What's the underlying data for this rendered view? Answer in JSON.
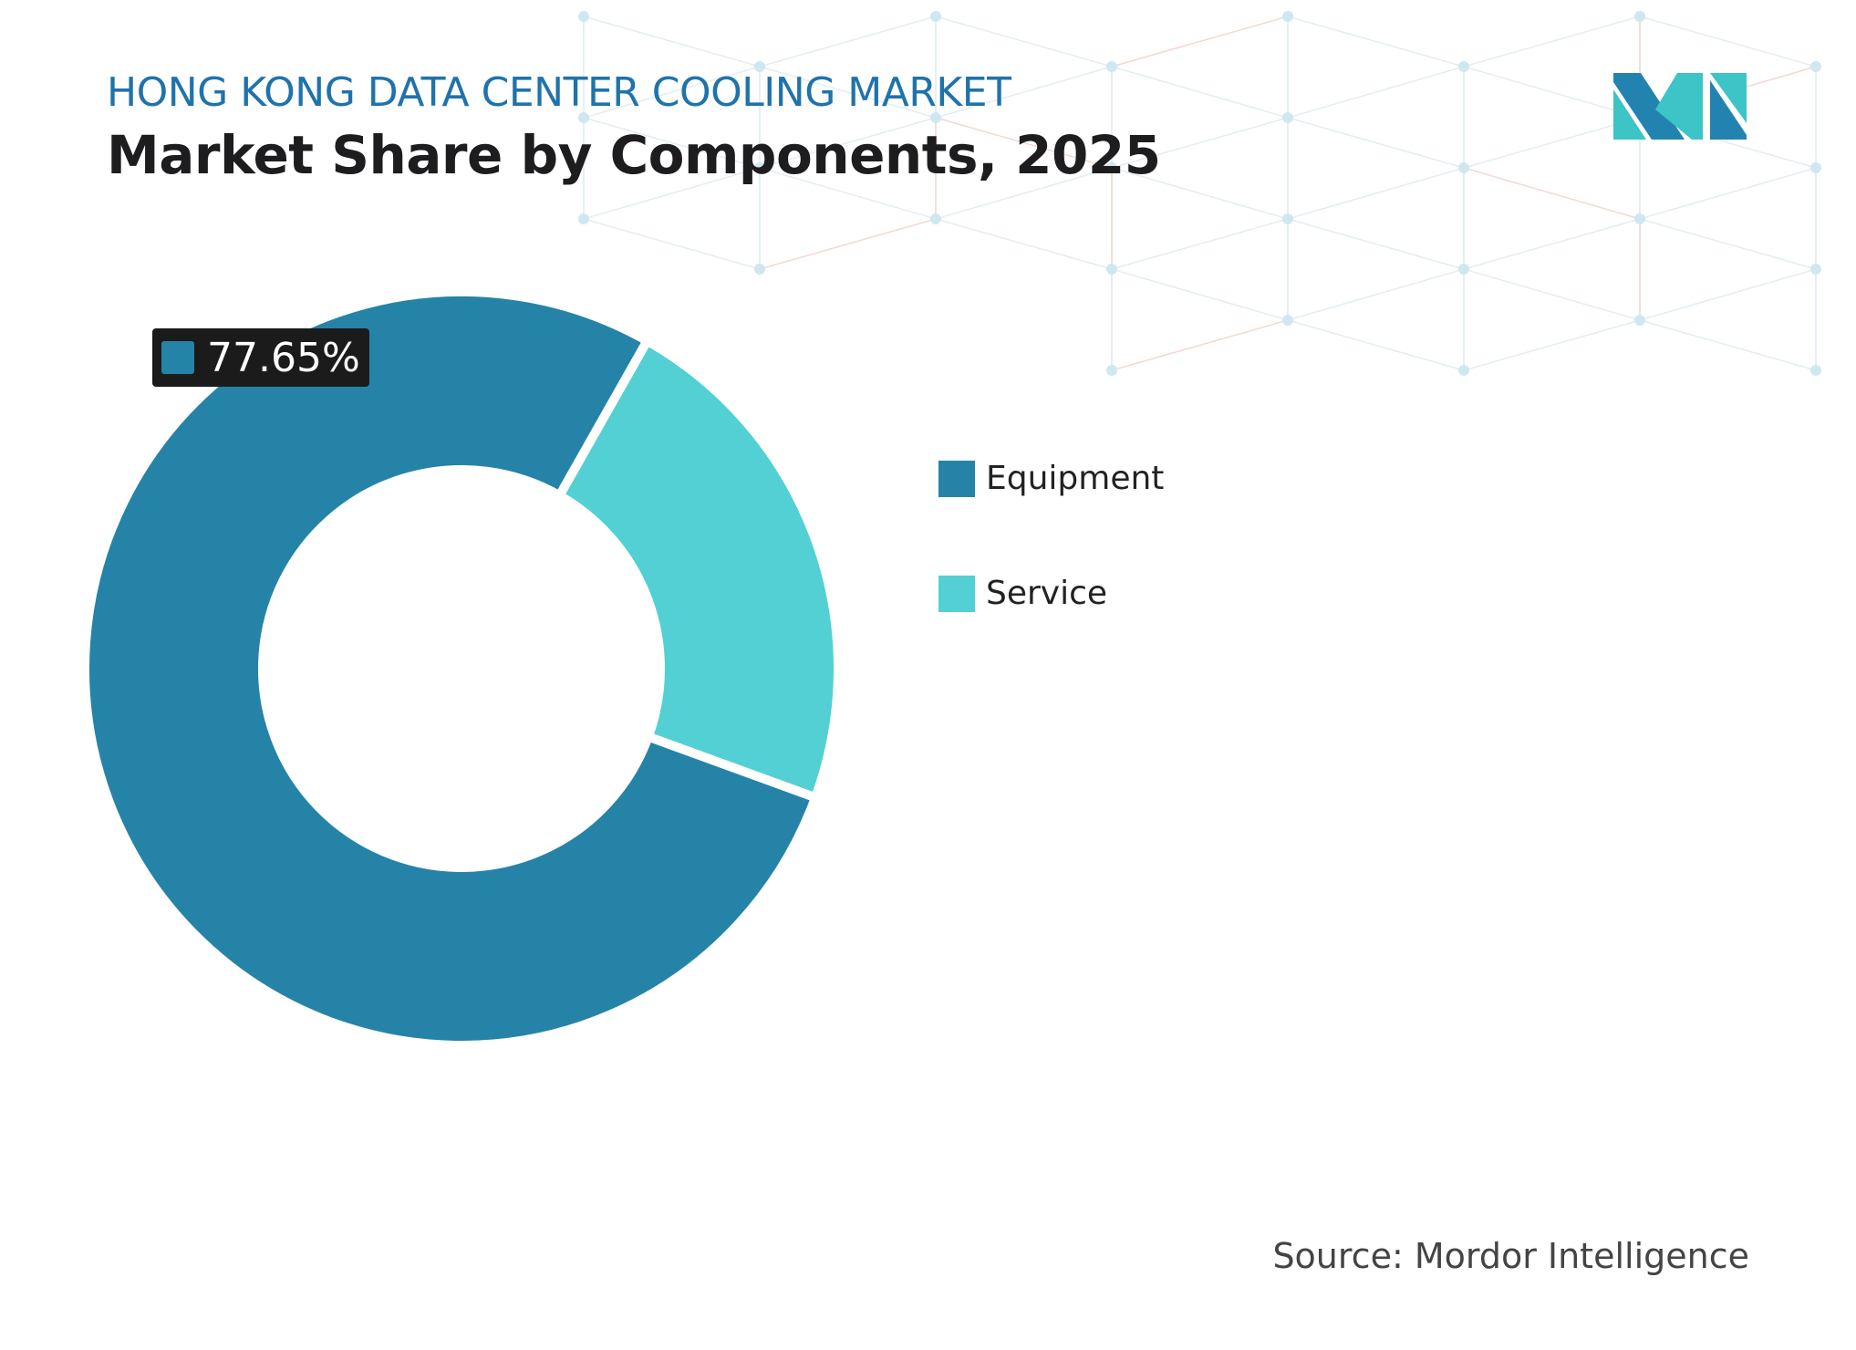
{
  "header": {
    "title": "HONG KONG DATA CENTER COOLING MARKET",
    "subtitle": "Market Share by Components, 2025"
  },
  "chart_data": {
    "type": "pie",
    "style": "donut",
    "title": "Market Share by Components, 2025",
    "categories": [
      "Equipment",
      "Service"
    ],
    "values": [
      77.65,
      22.35
    ],
    "colors": [
      "#2683a8",
      "#52d0d3"
    ],
    "data_labels": [
      {
        "category": "Equipment",
        "text": "77.65%"
      }
    ],
    "legend_position": "right"
  },
  "legend": {
    "items": [
      {
        "label": "Equipment",
        "color": "#2683a8"
      },
      {
        "label": "Service",
        "color": "#52d0d3"
      }
    ]
  },
  "source": "Source: Mordor Intelligence",
  "logo": {
    "text": "MI",
    "colors": [
      "#2383b0",
      "#3cc4c6"
    ]
  }
}
